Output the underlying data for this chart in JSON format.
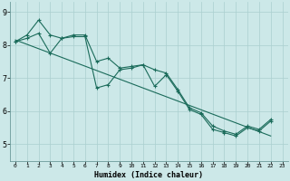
{
  "xlabel": "Humidex (Indice chaleur)",
  "bg_color": "#cce8e8",
  "grid_color": "#aacfcf",
  "line_color": "#1a6b5a",
  "xlim": [
    -0.5,
    23.5
  ],
  "ylim": [
    4.5,
    9.3
  ],
  "xticks": [
    0,
    1,
    2,
    3,
    4,
    5,
    6,
    7,
    8,
    9,
    10,
    11,
    12,
    13,
    14,
    15,
    16,
    17,
    18,
    19,
    20,
    21,
    22,
    23
  ],
  "yticks": [
    5,
    6,
    7,
    8,
    9
  ],
  "series1_x": [
    0,
    1,
    2,
    3,
    4,
    5,
    6,
    7,
    8,
    9,
    10,
    11,
    12,
    13,
    14,
    15,
    16,
    17,
    18,
    19,
    20,
    21,
    22
  ],
  "series1_y": [
    8.1,
    8.3,
    8.75,
    8.3,
    8.2,
    8.25,
    8.25,
    6.7,
    6.8,
    7.25,
    7.3,
    7.4,
    6.75,
    7.1,
    6.6,
    6.05,
    5.9,
    5.45,
    5.35,
    5.25,
    5.5,
    5.4,
    5.7
  ],
  "series2_x": [
    0,
    1,
    2,
    3,
    4,
    5,
    6,
    7,
    8,
    9,
    10,
    11,
    12,
    13,
    14,
    15,
    16,
    17,
    18,
    19,
    20,
    21,
    22
  ],
  "series2_y": [
    8.1,
    8.2,
    8.35,
    7.75,
    8.2,
    8.3,
    8.3,
    7.5,
    7.6,
    7.3,
    7.35,
    7.4,
    7.25,
    7.15,
    6.65,
    6.1,
    5.95,
    5.55,
    5.4,
    5.3,
    5.55,
    5.45,
    5.75
  ],
  "trend_x": [
    0,
    22
  ],
  "trend_y": [
    8.15,
    5.25
  ]
}
